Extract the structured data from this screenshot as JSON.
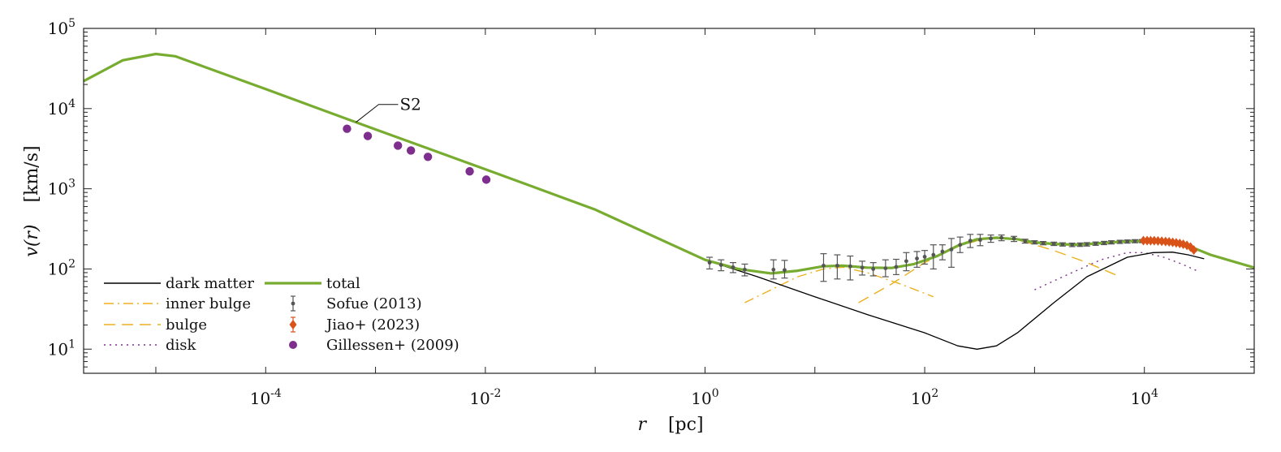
{
  "chart_data": {
    "type": "line",
    "title": "",
    "xlabel": {
      "var": "r",
      "unit": "[pc]"
    },
    "ylabel": {
      "var": "v(r)",
      "unit": "[km/s]"
    },
    "xscale": "log",
    "yscale": "log",
    "xlim": [
      2.2e-06,
      100000.0
    ],
    "ylim": [
      5,
      100000
    ],
    "grid": false,
    "legend_placement": "bottom-left",
    "x_ticks": [
      {
        "value": 0.0001,
        "base": "10",
        "exp": "-4"
      },
      {
        "value": 0.01,
        "base": "10",
        "exp": "-2"
      },
      {
        "value": 1,
        "base": "10",
        "exp": "0"
      },
      {
        "value": 100,
        "base": "10",
        "exp": "2"
      },
      {
        "value": 10000,
        "base": "10",
        "exp": "4"
      }
    ],
    "y_ticks": [
      {
        "value": 10,
        "base": "10",
        "exp": "1"
      },
      {
        "value": 100,
        "base": "10",
        "exp": "2"
      },
      {
        "value": 1000,
        "base": "10",
        "exp": "3"
      },
      {
        "value": 10000,
        "base": "10",
        "exp": "4"
      },
      {
        "value": 100000,
        "base": "10",
        "exp": "5"
      }
    ],
    "series": [
      {
        "name": "total",
        "kind": "line",
        "style": "solid",
        "color": "#77AC30",
        "points": [
          [
            2.2e-06,
            22000
          ],
          [
            5e-06,
            40000
          ],
          [
            1e-05,
            48000
          ],
          [
            1.5e-05,
            45000
          ],
          [
            0.0001,
            17500
          ],
          [
            0.001,
            5500
          ],
          [
            0.01,
            1750
          ],
          [
            0.1,
            550
          ],
          [
            1,
            130
          ],
          [
            2,
            100
          ],
          [
            4,
            88
          ],
          [
            7,
            95
          ],
          [
            12,
            108
          ],
          [
            18,
            110
          ],
          [
            30,
            104
          ],
          [
            50,
            103
          ],
          [
            80,
            115
          ],
          [
            130,
            145
          ],
          [
            200,
            195
          ],
          [
            300,
            235
          ],
          [
            450,
            245
          ],
          [
            700,
            235
          ],
          [
            1000,
            215
          ],
          [
            1500,
            205
          ],
          [
            2500,
            200
          ],
          [
            4000,
            210
          ],
          [
            7000,
            222
          ],
          [
            15000,
            225
          ],
          [
            25000,
            195
          ],
          [
            40000,
            150
          ],
          [
            100000,
            104
          ]
        ]
      },
      {
        "name": "dark matter",
        "kind": "line",
        "style": "solid",
        "color": "#000000",
        "points": [
          [
            1,
            130
          ],
          [
            3,
            80
          ],
          [
            10,
            45
          ],
          [
            30,
            27
          ],
          [
            100,
            16
          ],
          [
            200,
            11
          ],
          [
            300,
            10
          ],
          [
            450,
            11
          ],
          [
            700,
            16
          ],
          [
            1500,
            38
          ],
          [
            3000,
            80
          ],
          [
            7000,
            140
          ],
          [
            12000,
            160
          ],
          [
            18000,
            162
          ],
          [
            25000,
            150
          ],
          [
            35000,
            134
          ]
        ]
      },
      {
        "name": "inner bulge",
        "kind": "line",
        "style": "dashdot",
        "color": "#EDB120",
        "points": [
          [
            2.3,
            38
          ],
          [
            4,
            55
          ],
          [
            7,
            80
          ],
          [
            12,
            100
          ],
          [
            18,
            105
          ],
          [
            30,
            90
          ],
          [
            60,
            65
          ],
          [
            120,
            45
          ]
        ]
      },
      {
        "name": "bulge",
        "kind": "line",
        "style": "dashed",
        "color": "#EDB120",
        "points": [
          [
            25,
            38
          ],
          [
            50,
            65
          ],
          [
            100,
            120
          ],
          [
            200,
            190
          ],
          [
            350,
            240
          ],
          [
            500,
            245
          ],
          [
            800,
            220
          ],
          [
            1500,
            170
          ],
          [
            3000,
            120
          ],
          [
            6000,
            80
          ]
        ]
      },
      {
        "name": "disk",
        "kind": "line",
        "style": "dotted",
        "color": "#7E2F8E",
        "points": [
          [
            1000,
            55
          ],
          [
            2000,
            85
          ],
          [
            4000,
            130
          ],
          [
            7000,
            160
          ],
          [
            10000,
            160
          ],
          [
            15000,
            140
          ],
          [
            22000,
            115
          ],
          [
            30000,
            95
          ]
        ]
      },
      {
        "name": "Sofue (2013)",
        "kind": "errorbar",
        "color": "#555555",
        "points": [
          [
            1.1,
            120,
            100,
            140
          ],
          [
            1.4,
            112,
            95,
            130
          ],
          [
            1.8,
            105,
            90,
            120
          ],
          [
            2.3,
            98,
            82,
            115
          ],
          [
            4.2,
            98,
            75,
            130
          ],
          [
            5.3,
            97,
            77,
            128
          ],
          [
            12,
            110,
            70,
            155
          ],
          [
            16,
            110,
            75,
            150
          ],
          [
            21,
            108,
            73,
            145
          ],
          [
            27,
            104,
            84,
            125
          ],
          [
            34,
            100,
            82,
            120
          ],
          [
            44,
            102,
            80,
            130
          ],
          [
            55,
            106,
            85,
            132
          ],
          [
            68,
            125,
            95,
            160
          ],
          [
            85,
            135,
            105,
            165
          ],
          [
            100,
            142,
            115,
            170
          ],
          [
            120,
            150,
            100,
            200
          ],
          [
            145,
            165,
            130,
            200
          ],
          [
            175,
            175,
            105,
            240
          ],
          [
            210,
            200,
            160,
            250
          ],
          [
            260,
            225,
            185,
            270
          ],
          [
            320,
            230,
            195,
            270
          ],
          [
            400,
            240,
            215,
            265
          ],
          [
            500,
            245,
            225,
            265
          ],
          [
            650,
            240,
            220,
            255
          ],
          [
            820,
            222,
            210,
            235
          ],
          [
            1000,
            215,
            205,
            225
          ],
          [
            1200,
            210,
            200,
            220
          ],
          [
            1500,
            206,
            196,
            216
          ],
          [
            1800,
            202,
            193,
            212
          ],
          [
            2200,
            200,
            190,
            210
          ],
          [
            2600,
            201,
            191,
            211
          ],
          [
            3000,
            203,
            193,
            213
          ],
          [
            3600,
            207,
            197,
            217
          ],
          [
            4300,
            211,
            201,
            221
          ],
          [
            5000,
            215,
            205,
            225
          ],
          [
            6000,
            218,
            208,
            228
          ],
          [
            7000,
            220,
            210,
            230
          ],
          [
            8200,
            222,
            212,
            232
          ],
          [
            9500,
            223,
            213,
            233
          ]
        ]
      },
      {
        "name": "Jiao+ (2023)",
        "kind": "errorbar",
        "color": "#D95319",
        "points": [
          [
            9800,
            226,
            221,
            231
          ],
          [
            10600,
            226,
            221,
            231
          ],
          [
            11400,
            225,
            220,
            230
          ],
          [
            12300,
            225,
            220,
            230
          ],
          [
            13300,
            224,
            219,
            229
          ],
          [
            14400,
            222,
            217,
            227
          ],
          [
            15600,
            220,
            215,
            225
          ],
          [
            16800,
            218,
            213,
            223
          ],
          [
            18100,
            215,
            210,
            220
          ],
          [
            19500,
            212,
            207,
            217
          ],
          [
            21000,
            208,
            203,
            213
          ],
          [
            22600,
            203,
            198,
            208
          ],
          [
            24400,
            197,
            192,
            202
          ],
          [
            26300,
            188,
            183,
            193
          ],
          [
            28200,
            172,
            166,
            178
          ]
        ]
      },
      {
        "name": "Gillessen+ (2009)",
        "kind": "scatter",
        "color": "#7E2F8E",
        "points": [
          [
            0.00055,
            5600
          ],
          [
            0.00085,
            4550
          ],
          [
            0.0016,
            3450
          ],
          [
            0.0021,
            3000
          ],
          [
            0.003,
            2500
          ],
          [
            0.0072,
            1650
          ],
          [
            0.0102,
            1300
          ]
        ]
      }
    ],
    "legend": [
      {
        "label": "dark matter",
        "kind": "solid",
        "color": "#000000"
      },
      {
        "label": "inner bulge",
        "kind": "dashdot",
        "color": "#EDB120"
      },
      {
        "label": "bulge",
        "kind": "dashed",
        "color": "#EDB120"
      },
      {
        "label": "disk",
        "kind": "dotted",
        "color": "#7E2F8E"
      },
      {
        "label": "total",
        "kind": "thick",
        "color": "#77AC30"
      },
      {
        "label": "Sofue (2013)",
        "kind": "errorbar",
        "color": "#555555"
      },
      {
        "label": "Jiao+ (2023)",
        "kind": "diamond-errorbar",
        "color": "#D95319"
      },
      {
        "label": "Gillessen+ (2009)",
        "kind": "dot",
        "color": "#7E2F8E"
      }
    ],
    "annotations": [
      {
        "text": "S2",
        "points_to": [
          0.00055,
          5600
        ]
      }
    ]
  }
}
